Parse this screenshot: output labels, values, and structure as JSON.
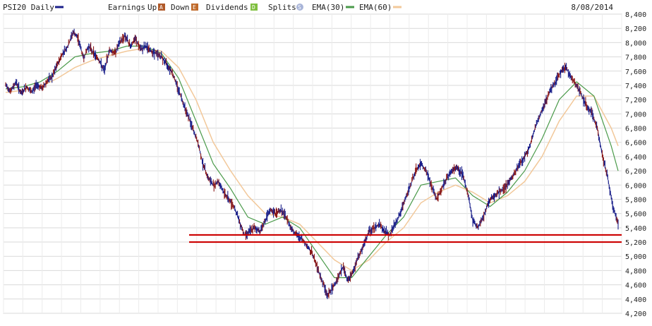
{
  "header": {
    "symbol_label": "PSI20 Daily",
    "earnings_label": "Earnings",
    "up_label": "Up",
    "down_label": "Down",
    "dividends_label": "Dividends",
    "splits_label": "Splits",
    "ema30_label": "EMA(30)",
    "ema60_label": "EMA(60)",
    "date_label": "8/08/2014",
    "up_badge": "A",
    "down_badge": "E",
    "div_badge": "D",
    "split_badge": "S"
  },
  "colors": {
    "price": "#1a1f8a",
    "price_down": "#8b1a1a",
    "ema30": "#4a9a4a",
    "ema60": "#f2c89a",
    "support": "#cc0000",
    "grid": "#d9d9d9",
    "up_badge": "#b05a2a",
    "down_badge": "#c06a2a",
    "div_badge": "#7fbf3f",
    "split_badge": "#a8b4d8"
  },
  "chart_data": {
    "type": "line",
    "title": "PSI20 Daily",
    "ylim": [
      4200,
      8400
    ],
    "yticks": [
      4200,
      4400,
      4600,
      4800,
      5000,
      5200,
      5400,
      5600,
      5800,
      6000,
      6200,
      6400,
      6600,
      6800,
      7000,
      7200,
      7400,
      7600,
      7800,
      8000,
      8200,
      8400
    ],
    "ytick_labels": [
      "4,200",
      "4,400",
      "4,600",
      "4,800",
      "5,000",
      "5,200",
      "5,400",
      "5,600",
      "5,800",
      "6,000",
      "6,200",
      "6,400",
      "6,600",
      "6,800",
      "7,000",
      "7,200",
      "7,400",
      "7,600",
      "7,800",
      "8,000",
      "8,200",
      "8,400"
    ],
    "grid": true,
    "legend": "top",
    "series": [
      {
        "name": "PSI20 Daily",
        "style": "ohlc",
        "values": [
          [
            0,
            7400
          ],
          [
            3,
            7320
          ],
          [
            6,
            7450
          ],
          [
            9,
            7280
          ],
          [
            12,
            7380
          ],
          [
            15,
            7300
          ],
          [
            18,
            7420
          ],
          [
            21,
            7350
          ],
          [
            24,
            7460
          ],
          [
            27,
            7520
          ],
          [
            30,
            7700
          ],
          [
            33,
            7850
          ],
          [
            36,
            7950
          ],
          [
            39,
            8150
          ],
          [
            42,
            8050
          ],
          [
            45,
            7780
          ],
          [
            48,
            7950
          ],
          [
            51,
            7850
          ],
          [
            54,
            7750
          ],
          [
            57,
            7600
          ],
          [
            60,
            7900
          ],
          [
            63,
            7850
          ],
          [
            66,
            8000
          ],
          [
            69,
            8100
          ],
          [
            72,
            7950
          ],
          [
            75,
            8050
          ],
          [
            78,
            7900
          ],
          [
            81,
            7950
          ],
          [
            84,
            7880
          ],
          [
            87,
            7850
          ],
          [
            90,
            7800
          ],
          [
            93,
            7700
          ],
          [
            96,
            7600
          ],
          [
            99,
            7400
          ],
          [
            102,
            7200
          ],
          [
            105,
            7000
          ],
          [
            108,
            6800
          ],
          [
            111,
            6600
          ],
          [
            114,
            6300
          ],
          [
            117,
            6100
          ],
          [
            120,
            6000
          ],
          [
            123,
            6050
          ],
          [
            126,
            5900
          ],
          [
            129,
            5800
          ],
          [
            132,
            5700
          ],
          [
            135,
            5500
          ],
          [
            138,
            5300
          ],
          [
            141,
            5350
          ],
          [
            144,
            5400
          ],
          [
            147,
            5350
          ],
          [
            150,
            5500
          ],
          [
            153,
            5650
          ],
          [
            156,
            5600
          ],
          [
            159,
            5650
          ],
          [
            162,
            5550
          ],
          [
            165,
            5400
          ],
          [
            168,
            5300
          ],
          [
            171,
            5250
          ],
          [
            174,
            5150
          ],
          [
            177,
            5050
          ],
          [
            180,
            4850
          ],
          [
            183,
            4650
          ],
          [
            186,
            4450
          ],
          [
            189,
            4550
          ],
          [
            192,
            4700
          ],
          [
            195,
            4850
          ],
          [
            198,
            4650
          ],
          [
            201,
            4800
          ],
          [
            204,
            5000
          ],
          [
            207,
            5150
          ],
          [
            210,
            5350
          ],
          [
            213,
            5400
          ],
          [
            216,
            5450
          ],
          [
            219,
            5350
          ],
          [
            222,
            5300
          ],
          [
            225,
            5450
          ],
          [
            228,
            5600
          ],
          [
            231,
            5800
          ],
          [
            234,
            6000
          ],
          [
            237,
            6200
          ],
          [
            240,
            6300
          ],
          [
            243,
            6200
          ],
          [
            246,
            6000
          ],
          [
            249,
            5800
          ],
          [
            252,
            5950
          ],
          [
            255,
            6100
          ],
          [
            258,
            6200
          ],
          [
            261,
            6250
          ],
          [
            264,
            6150
          ],
          [
            267,
            5900
          ],
          [
            270,
            5500
          ],
          [
            273,
            5400
          ],
          [
            276,
            5550
          ],
          [
            279,
            5750
          ],
          [
            282,
            5850
          ],
          [
            285,
            5900
          ],
          [
            288,
            5950
          ],
          [
            291,
            6050
          ],
          [
            294,
            6150
          ],
          [
            297,
            6300
          ],
          [
            300,
            6400
          ],
          [
            303,
            6550
          ],
          [
            306,
            6800
          ],
          [
            309,
            7000
          ],
          [
            312,
            7150
          ],
          [
            315,
            7350
          ],
          [
            318,
            7450
          ],
          [
            321,
            7600
          ],
          [
            324,
            7650
          ],
          [
            327,
            7500
          ],
          [
            330,
            7400
          ],
          [
            333,
            7250
          ],
          [
            336,
            7100
          ],
          [
            339,
            7000
          ],
          [
            342,
            6800
          ],
          [
            345,
            6400
          ],
          [
            348,
            6100
          ],
          [
            351,
            5700
          ],
          [
            354,
            5450
          ]
        ]
      },
      {
        "name": "EMA(30)",
        "values": [
          [
            0,
            7350
          ],
          [
            10,
            7380
          ],
          [
            20,
            7450
          ],
          [
            30,
            7600
          ],
          [
            40,
            7800
          ],
          [
            50,
            7850
          ],
          [
            60,
            7880
          ],
          [
            70,
            7950
          ],
          [
            80,
            7950
          ],
          [
            90,
            7850
          ],
          [
            100,
            7500
          ],
          [
            110,
            6900
          ],
          [
            120,
            6300
          ],
          [
            130,
            5950
          ],
          [
            140,
            5550
          ],
          [
            150,
            5450
          ],
          [
            160,
            5550
          ],
          [
            170,
            5400
          ],
          [
            180,
            5050
          ],
          [
            190,
            4700
          ],
          [
            200,
            4700
          ],
          [
            210,
            5000
          ],
          [
            220,
            5300
          ],
          [
            230,
            5550
          ],
          [
            240,
            6000
          ],
          [
            250,
            6050
          ],
          [
            260,
            6100
          ],
          [
            270,
            5850
          ],
          [
            280,
            5700
          ],
          [
            290,
            5900
          ],
          [
            300,
            6200
          ],
          [
            310,
            6650
          ],
          [
            320,
            7200
          ],
          [
            330,
            7450
          ],
          [
            340,
            7250
          ],
          [
            350,
            6550
          ],
          [
            354,
            6200
          ]
        ]
      },
      {
        "name": "EMA(60)",
        "values": [
          [
            0,
            7300
          ],
          [
            10,
            7330
          ],
          [
            20,
            7380
          ],
          [
            30,
            7500
          ],
          [
            40,
            7650
          ],
          [
            50,
            7750
          ],
          [
            60,
            7820
          ],
          [
            70,
            7880
          ],
          [
            80,
            7920
          ],
          [
            90,
            7880
          ],
          [
            100,
            7650
          ],
          [
            110,
            7200
          ],
          [
            120,
            6600
          ],
          [
            130,
            6200
          ],
          [
            140,
            5850
          ],
          [
            150,
            5600
          ],
          [
            160,
            5550
          ],
          [
            170,
            5450
          ],
          [
            180,
            5200
          ],
          [
            190,
            4950
          ],
          [
            200,
            4800
          ],
          [
            210,
            4950
          ],
          [
            220,
            5200
          ],
          [
            230,
            5400
          ],
          [
            240,
            5750
          ],
          [
            250,
            5900
          ],
          [
            260,
            6000
          ],
          [
            270,
            5900
          ],
          [
            280,
            5750
          ],
          [
            290,
            5850
          ],
          [
            300,
            6050
          ],
          [
            310,
            6400
          ],
          [
            320,
            6900
          ],
          [
            330,
            7250
          ],
          [
            340,
            7250
          ],
          [
            350,
            6800
          ],
          [
            354,
            6550
          ]
        ]
      }
    ],
    "hlines": [
      5300,
      5200
    ]
  }
}
